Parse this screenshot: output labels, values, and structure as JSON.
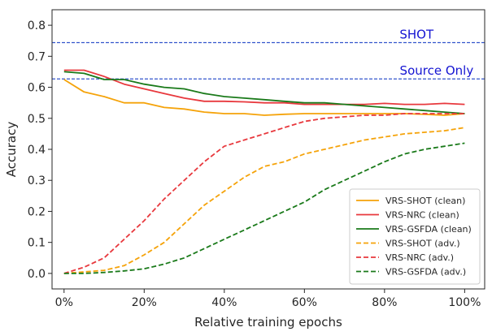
{
  "chart_data": {
    "type": "line",
    "title": "",
    "xlabel": "Relative training epochs",
    "ylabel": "Accuracy",
    "xlim": [
      -0.03,
      1.05
    ],
    "ylim": [
      -0.05,
      0.85
    ],
    "x_ticks": [
      0,
      0.2,
      0.4,
      0.6,
      0.8,
      1.0
    ],
    "x_tick_labels": [
      "0%",
      "20%",
      "40%",
      "60%",
      "80%",
      "100%"
    ],
    "y_ticks": [
      0.0,
      0.1,
      0.2,
      0.3,
      0.4,
      0.5,
      0.6,
      0.7,
      0.8
    ],
    "y_tick_labels": [
      "0.0",
      "0.1",
      "0.2",
      "0.3",
      "0.4",
      "0.5",
      "0.6",
      "0.7",
      "0.8"
    ],
    "grid": false,
    "legend_position": "bottom-right",
    "reference_lines": [
      {
        "label": "SHOT",
        "y": 0.744,
        "color": "#3355cc"
      },
      {
        "label": "Source Only",
        "y": 0.627,
        "color": "#3355cc"
      }
    ],
    "x": [
      0,
      0.05,
      0.1,
      0.15,
      0.2,
      0.25,
      0.3,
      0.35,
      0.4,
      0.45,
      0.5,
      0.55,
      0.6,
      0.65,
      0.7,
      0.75,
      0.8,
      0.85,
      0.9,
      0.95,
      1.0
    ],
    "series": [
      {
        "name": "VRS-SHOT (clean)",
        "color": "#f5a30a",
        "style": "solid",
        "values": [
          0.625,
          0.585,
          0.57,
          0.55,
          0.55,
          0.535,
          0.53,
          0.52,
          0.515,
          0.515,
          0.51,
          0.513,
          0.515,
          0.515,
          0.515,
          0.515,
          0.515,
          0.515,
          0.513,
          0.51,
          0.515
        ]
      },
      {
        "name": "VRS-NRC (clean)",
        "color": "#e8383d",
        "style": "solid",
        "values": [
          0.655,
          0.655,
          0.635,
          0.61,
          0.595,
          0.58,
          0.565,
          0.555,
          0.555,
          0.553,
          0.55,
          0.55,
          0.545,
          0.545,
          0.545,
          0.545,
          0.548,
          0.545,
          0.545,
          0.548,
          0.545
        ]
      },
      {
        "name": "VRS-GSFDA (clean)",
        "color": "#1a7a1a",
        "style": "solid",
        "values": [
          0.65,
          0.645,
          0.625,
          0.625,
          0.61,
          0.6,
          0.595,
          0.58,
          0.57,
          0.565,
          0.56,
          0.555,
          0.55,
          0.55,
          0.545,
          0.54,
          0.535,
          0.53,
          0.525,
          0.52,
          0.515
        ]
      },
      {
        "name": "VRS-SHOT (adv.)",
        "color": "#f5a30a",
        "style": "dashed",
        "values": [
          0.0,
          0.005,
          0.01,
          0.025,
          0.06,
          0.1,
          0.16,
          0.22,
          0.265,
          0.31,
          0.345,
          0.36,
          0.385,
          0.4,
          0.415,
          0.43,
          0.44,
          0.45,
          0.455,
          0.46,
          0.47
        ]
      },
      {
        "name": "VRS-NRC (adv.)",
        "color": "#e8383d",
        "style": "dashed",
        "values": [
          0.0,
          0.02,
          0.05,
          0.11,
          0.17,
          0.24,
          0.3,
          0.36,
          0.41,
          0.43,
          0.45,
          0.47,
          0.49,
          0.5,
          0.505,
          0.51,
          0.51,
          0.515,
          0.515,
          0.515,
          0.515
        ]
      },
      {
        "name": "VRS-GSFDA (adv.)",
        "color": "#1a7a1a",
        "style": "dashed",
        "values": [
          0.0,
          0.0,
          0.003,
          0.008,
          0.015,
          0.03,
          0.05,
          0.08,
          0.11,
          0.14,
          0.17,
          0.2,
          0.23,
          0.27,
          0.3,
          0.33,
          0.36,
          0.385,
          0.4,
          0.41,
          0.42
        ]
      }
    ]
  }
}
